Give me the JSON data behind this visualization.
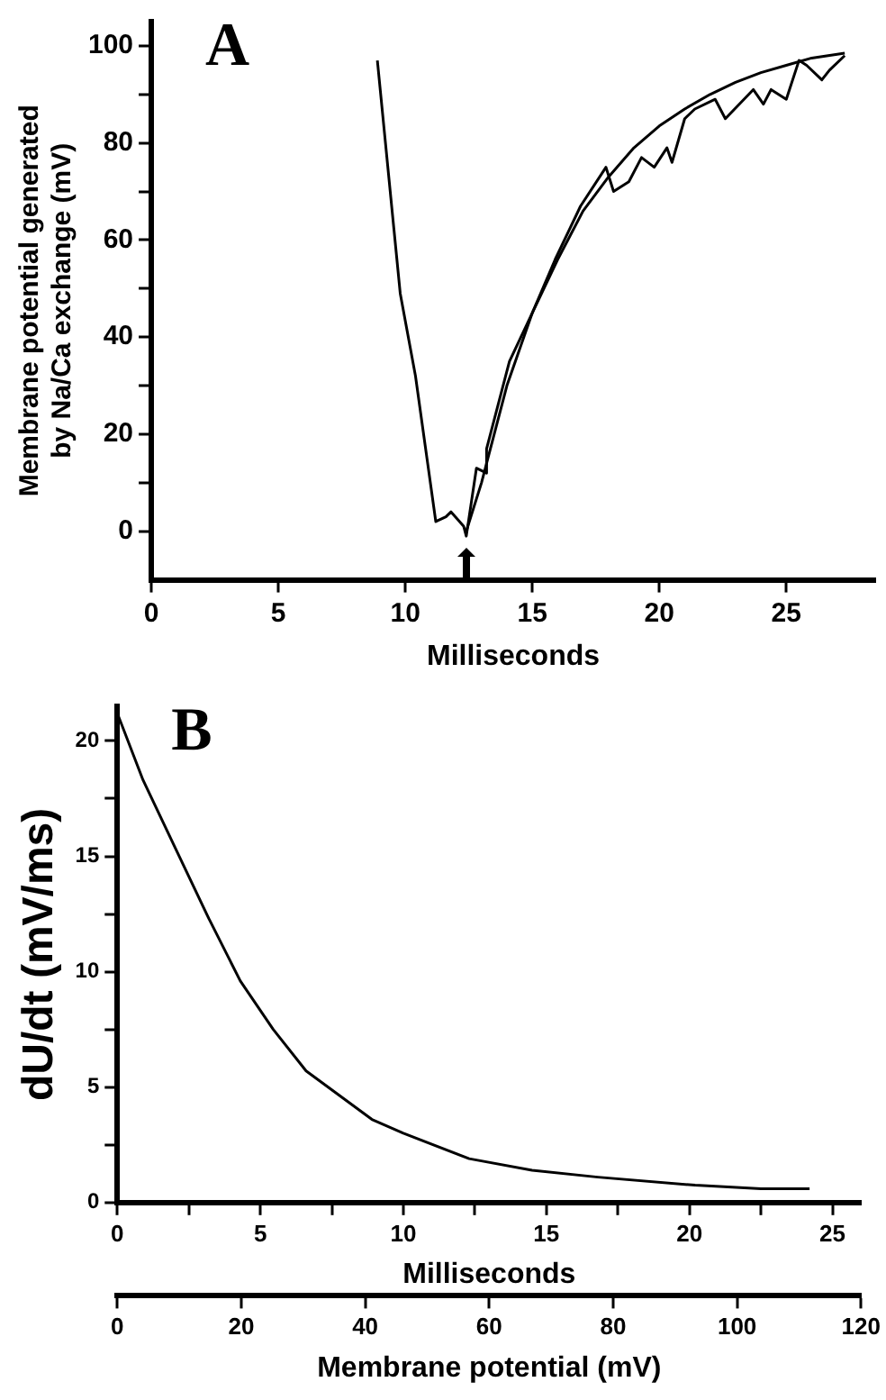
{
  "chart_data": [
    {
      "type": "line",
      "title": "A",
      "xlabel": "Milliseconds",
      "ylabel": "Membrane potential generated\nby Na/Ca exchange (mV)",
      "xlim": [
        0,
        28.5
      ],
      "xticks": [
        0,
        5,
        10,
        15,
        20,
        25
      ],
      "ylim": [
        -10,
        105
      ],
      "yticks": [
        0,
        {
          "value": 10,
          "label": null
        },
        20,
        {
          "value": 30,
          "label": null
        },
        40,
        {
          "value": 50,
          "label": null
        },
        60,
        {
          "value": 70,
          "label": null
        },
        80,
        {
          "value": 90,
          "label": null
        },
        100
      ],
      "grid": false,
      "legend": false,
      "marker": "none",
      "line_style": "solid",
      "series": [
        {
          "color": "#000000",
          "x": [
            8.9,
            9.8,
            10.4,
            11.2,
            11.6,
            11.8,
            12.3,
            12.4,
            12.8,
            13.2,
            13.2,
            14.1,
            15.0,
            15.9,
            16.9,
            17.9,
            18.2,
            18.8,
            19.3,
            19.8,
            20.3,
            20.5,
            21.0,
            21.4,
            22.2,
            22.6,
            23.7,
            24.1,
            24.4,
            25.0,
            25.5,
            25.8,
            26.4,
            26.7,
            27.3
          ],
          "values": [
            97,
            49,
            32,
            2,
            3,
            4,
            1,
            -1,
            13,
            12,
            17,
            35,
            45,
            56,
            67,
            75,
            70,
            72,
            77,
            75,
            79,
            76,
            85,
            87,
            89,
            85,
            91,
            88,
            91,
            89,
            97,
            96,
            93,
            95,
            98
          ]
        },
        {
          "color": "#000000",
          "x": [
            12.4,
            13,
            14,
            15,
            16,
            17,
            18,
            19,
            20,
            21,
            22,
            23,
            24,
            25,
            26,
            27.3
          ],
          "values": [
            0,
            10,
            30,
            45,
            56,
            66,
            73,
            79,
            83.5,
            87,
            90,
            92.5,
            94.5,
            96,
            97.5,
            98.5
          ]
        }
      ]
    },
    {
      "type": "line",
      "title": "B",
      "xlabel": "Milliseconds",
      "ylabel": "dU/dt (mV/ms)",
      "xlim": [
        0,
        26
      ],
      "xticks": [
        0,
        {
          "value": 2.5,
          "label": null
        },
        5,
        {
          "value": 7.5,
          "label": null
        },
        10,
        {
          "value": 12.5,
          "label": null
        },
        15,
        {
          "value": 17.5,
          "label": null
        },
        20,
        {
          "value": 22.5,
          "label": null
        },
        25
      ],
      "ylim": [
        0,
        21.5
      ],
      "yticks": [
        0,
        {
          "value": 2.5,
          "label": null
        },
        5,
        {
          "value": 7.5,
          "label": null
        },
        10,
        {
          "value": 12.5,
          "label": null
        },
        15,
        {
          "value": 17.5,
          "label": null
        },
        20
      ],
      "x2label": "Membrane potential (mV)",
      "x2lim": [
        0,
        120
      ],
      "x2ticks": [
        0,
        20,
        40,
        60,
        80,
        100,
        120
      ],
      "grid": false,
      "legend": false,
      "marker": "none",
      "line_style": "solid",
      "series": [
        {
          "color": "#000000",
          "x": [
            0,
            0.9,
            2.05,
            3.2,
            4.3,
            5.45,
            6.6,
            8.9,
            10,
            12.3,
            14.5,
            16.8,
            20.2,
            22.5,
            24.2
          ],
          "values": [
            21.2,
            18.3,
            15.3,
            12.3,
            9.6,
            7.5,
            5.7,
            3.6,
            3.0,
            1.9,
            1.4,
            1.1,
            0.75,
            0.6,
            0.6
          ]
        }
      ]
    }
  ]
}
